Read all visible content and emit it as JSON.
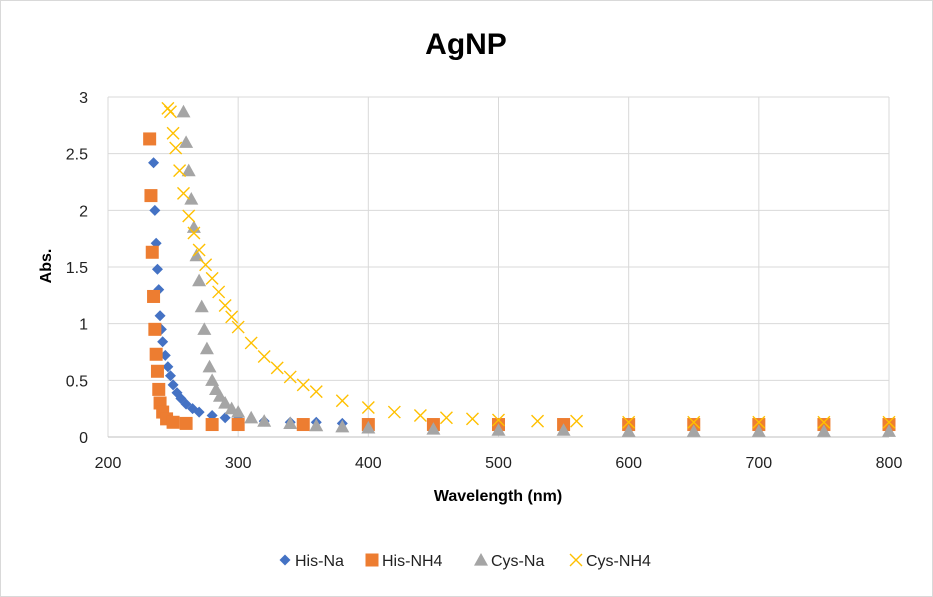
{
  "chart_data": {
    "type": "scatter",
    "title": "AgNP",
    "xlabel": "Wavelength (nm)",
    "ylabel": "Abs.",
    "xlim": [
      200,
      800
    ],
    "ylim": [
      0,
      3
    ],
    "xticks": [
      "200",
      "300",
      "400",
      "500",
      "600",
      "700",
      "800"
    ],
    "yticks": [
      "0",
      "0.5",
      "1",
      "1.5",
      "2",
      "2.5",
      "3"
    ],
    "grid": true,
    "legend_position": "bottom",
    "series": [
      {
        "name": "His-Na",
        "color": "#4472C4",
        "marker": "diamond",
        "x": [
          235,
          236,
          237,
          238,
          239,
          240,
          241,
          242,
          244,
          246,
          248,
          250,
          253,
          256,
          260,
          265,
          270,
          280,
          290,
          300,
          320,
          340,
          360,
          380,
          400,
          450,
          500,
          550,
          600,
          650,
          700,
          750,
          800
        ],
        "y": [
          2.42,
          2.0,
          1.71,
          1.48,
          1.3,
          1.07,
          0.95,
          0.84,
          0.72,
          0.62,
          0.54,
          0.46,
          0.39,
          0.34,
          0.29,
          0.25,
          0.22,
          0.19,
          0.17,
          0.16,
          0.14,
          0.13,
          0.13,
          0.12,
          0.12,
          0.11,
          0.11,
          0.1,
          0.1,
          0.1,
          0.1,
          0.09,
          0.09
        ]
      },
      {
        "name": "His-NH4",
        "color": "#ED7D31",
        "marker": "square",
        "x": [
          232,
          233,
          234,
          235,
          236,
          237,
          238,
          239,
          240,
          242,
          245,
          250,
          260,
          280,
          300,
          350,
          400,
          450,
          500,
          550,
          600,
          650,
          700,
          750,
          800
        ],
        "y": [
          2.63,
          2.13,
          1.63,
          1.24,
          0.95,
          0.73,
          0.58,
          0.42,
          0.3,
          0.22,
          0.16,
          0.13,
          0.12,
          0.11,
          0.11,
          0.11,
          0.11,
          0.11,
          0.11,
          0.11,
          0.11,
          0.11,
          0.11,
          0.11,
          0.11
        ]
      },
      {
        "name": "Cys-Na",
        "color": "#A5A5A5",
        "marker": "triangle",
        "x": [
          258,
          260,
          262,
          264,
          266,
          268,
          270,
          272,
          274,
          276,
          278,
          280,
          283,
          286,
          290,
          295,
          300,
          310,
          320,
          340,
          360,
          380,
          400,
          450,
          500,
          550,
          600,
          650,
          700,
          750,
          800
        ],
        "y": [
          2.87,
          2.6,
          2.35,
          2.1,
          1.85,
          1.6,
          1.38,
          1.15,
          0.95,
          0.78,
          0.62,
          0.5,
          0.42,
          0.36,
          0.3,
          0.25,
          0.22,
          0.17,
          0.14,
          0.12,
          0.1,
          0.09,
          0.08,
          0.07,
          0.06,
          0.06,
          0.05,
          0.05,
          0.05,
          0.05,
          0.05
        ]
      },
      {
        "name": "Cys-NH4",
        "color": "#FFC000",
        "marker": "x",
        "x": [
          246,
          248,
          250,
          252,
          255,
          258,
          262,
          266,
          270,
          275,
          280,
          285,
          290,
          295,
          300,
          310,
          320,
          330,
          340,
          350,
          360,
          380,
          400,
          420,
          440,
          460,
          480,
          500,
          530,
          560,
          600,
          650,
          700,
          750,
          800
        ],
        "y": [
          2.9,
          2.87,
          2.68,
          2.55,
          2.35,
          2.15,
          1.95,
          1.8,
          1.65,
          1.52,
          1.4,
          1.28,
          1.16,
          1.06,
          0.97,
          0.83,
          0.71,
          0.61,
          0.53,
          0.46,
          0.4,
          0.32,
          0.26,
          0.22,
          0.19,
          0.17,
          0.16,
          0.15,
          0.14,
          0.14,
          0.13,
          0.13,
          0.13,
          0.13,
          0.13
        ]
      }
    ]
  }
}
